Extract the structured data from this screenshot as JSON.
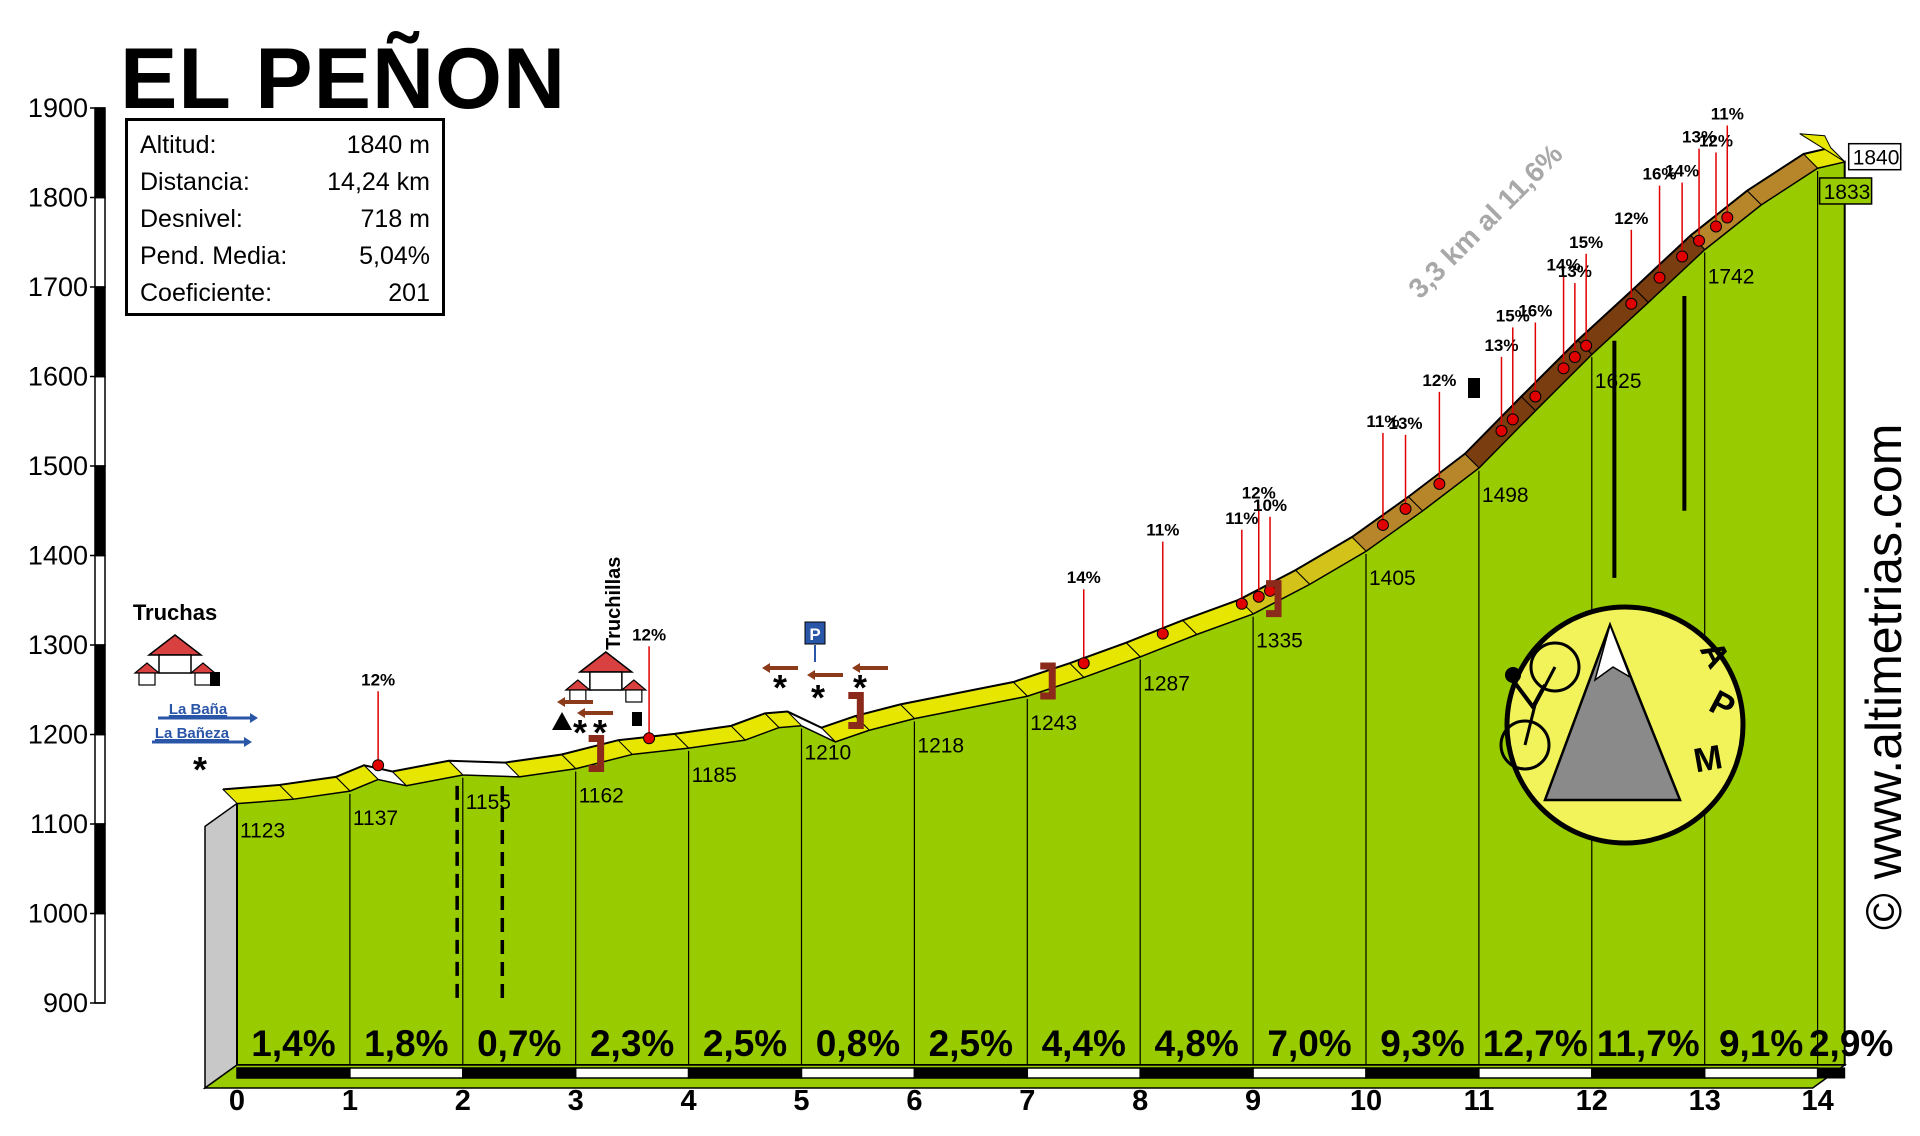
{
  "title": "EL PEÑON",
  "info": [
    {
      "label": "Altitud:",
      "value": "1840 m"
    },
    {
      "label": "Distancia:",
      "value": "14,24 km"
    },
    {
      "label": "Desnivel:",
      "value": "718 m"
    },
    {
      "label": "Pend. Media:",
      "value": "5,04%"
    },
    {
      "label": "Coeficiente:",
      "value": "201"
    }
  ],
  "watermark": "© www.altimetrias.com",
  "logo_text": "APM",
  "colors": {
    "fill": "#99cc00",
    "road": "#e6e600",
    "steep": "#7a3d10",
    "marker": "#e00000",
    "sign": "#2a56a8"
  },
  "chart_data": {
    "type": "area",
    "xlim": [
      0,
      14
    ],
    "ylim": [
      900,
      1900
    ],
    "y_ticks": [
      "900",
      "1000",
      "1100",
      "1200",
      "1300",
      "1400",
      "1500",
      "1600",
      "1700",
      "1800",
      "1900"
    ],
    "x_ticks": [
      "0",
      "1",
      "2",
      "3",
      "4",
      "5",
      "6",
      "7",
      "8",
      "9",
      "10",
      "11",
      "12",
      "13",
      "14"
    ],
    "profile": [
      {
        "km": 0,
        "alt": 1123
      },
      {
        "km": 0.5,
        "alt": 1128
      },
      {
        "km": 1,
        "alt": 1137
      },
      {
        "km": 1.25,
        "alt": 1150
      },
      {
        "km": 1.5,
        "alt": 1143
      },
      {
        "km": 2,
        "alt": 1155
      },
      {
        "km": 2.5,
        "alt": 1153
      },
      {
        "km": 3,
        "alt": 1162
      },
      {
        "km": 3.5,
        "alt": 1178
      },
      {
        "km": 4,
        "alt": 1185
      },
      {
        "km": 4.5,
        "alt": 1194
      },
      {
        "km": 4.8,
        "alt": 1208
      },
      {
        "km": 5,
        "alt": 1210
      },
      {
        "km": 5.3,
        "alt": 1192
      },
      {
        "km": 5.6,
        "alt": 1205
      },
      {
        "km": 6,
        "alt": 1218
      },
      {
        "km": 7,
        "alt": 1243
      },
      {
        "km": 7.5,
        "alt": 1264
      },
      {
        "km": 8,
        "alt": 1287
      },
      {
        "km": 8.5,
        "alt": 1312
      },
      {
        "km": 9,
        "alt": 1335
      },
      {
        "km": 9.5,
        "alt": 1368
      },
      {
        "km": 10,
        "alt": 1405
      },
      {
        "km": 10.5,
        "alt": 1450
      },
      {
        "km": 11,
        "alt": 1498
      },
      {
        "km": 11.5,
        "alt": 1562
      },
      {
        "km": 12,
        "alt": 1625
      },
      {
        "km": 12.5,
        "alt": 1683
      },
      {
        "km": 13,
        "alt": 1742
      },
      {
        "km": 13.5,
        "alt": 1792
      },
      {
        "km": 14,
        "alt": 1833
      },
      {
        "km": 14.24,
        "alt": 1840
      }
    ],
    "km_labels": [
      {
        "km": 0,
        "label": "1123"
      },
      {
        "km": 1,
        "label": "1137"
      },
      {
        "km": 2,
        "label": "1155"
      },
      {
        "km": 3,
        "label": "1162"
      },
      {
        "km": 4,
        "label": "1185"
      },
      {
        "km": 5,
        "label": "1210"
      },
      {
        "km": 6,
        "label": "1218"
      },
      {
        "km": 7,
        "label": "1243"
      },
      {
        "km": 8,
        "label": "1287"
      },
      {
        "km": 9,
        "label": "1335"
      },
      {
        "km": 10,
        "label": "1405"
      },
      {
        "km": 11,
        "label": "1498"
      },
      {
        "km": 12,
        "label": "1625"
      },
      {
        "km": 13,
        "label": "1742"
      },
      {
        "km": 14,
        "label": "1833"
      }
    ],
    "end_label": "1840",
    "segment_grades": [
      "1,4%",
      "1,8%",
      "0,7%",
      "2,3%",
      "2,5%",
      "0,8%",
      "2,5%",
      "4,4%",
      "4,8%",
      "7,0%",
      "9,3%",
      "12,7%",
      "11,7%",
      "9,1%",
      "2,9%"
    ],
    "steep_annotations": [
      {
        "km": 1.25,
        "label": "12%"
      },
      {
        "km": 3.65,
        "label": "12%"
      },
      {
        "km": 7.5,
        "label": "14%"
      },
      {
        "km": 8.2,
        "label": "11%"
      },
      {
        "km": 8.9,
        "label": "11%"
      },
      {
        "km": 9.05,
        "label": "12%"
      },
      {
        "km": 9.15,
        "label": "10%"
      },
      {
        "km": 10.15,
        "label": "11%"
      },
      {
        "km": 10.35,
        "label": "13%"
      },
      {
        "km": 10.65,
        "label": "12%"
      },
      {
        "km": 11.2,
        "label": "13%"
      },
      {
        "km": 11.3,
        "label": "15%"
      },
      {
        "km": 11.5,
        "label": "16%"
      },
      {
        "km": 11.75,
        "label": "14%"
      },
      {
        "km": 11.85,
        "label": "13%"
      },
      {
        "km": 11.95,
        "label": "15%"
      },
      {
        "km": 12.35,
        "label": "12%"
      },
      {
        "km": 12.6,
        "label": "16%"
      },
      {
        "km": 12.8,
        "label": "14%"
      },
      {
        "km": 12.95,
        "label": "13%"
      },
      {
        "km": 13.1,
        "label": "12%"
      },
      {
        "km": 13.2,
        "label": "11%"
      }
    ],
    "stretch_label": "3,3 km al 11,6%",
    "places": [
      {
        "km": 0,
        "label": "Truchas"
      },
      {
        "km": 3.4,
        "label": "Truchillas"
      }
    ],
    "road_signs": [
      "La Baña",
      "La Bañeza"
    ],
    "parking_label": "P"
  }
}
